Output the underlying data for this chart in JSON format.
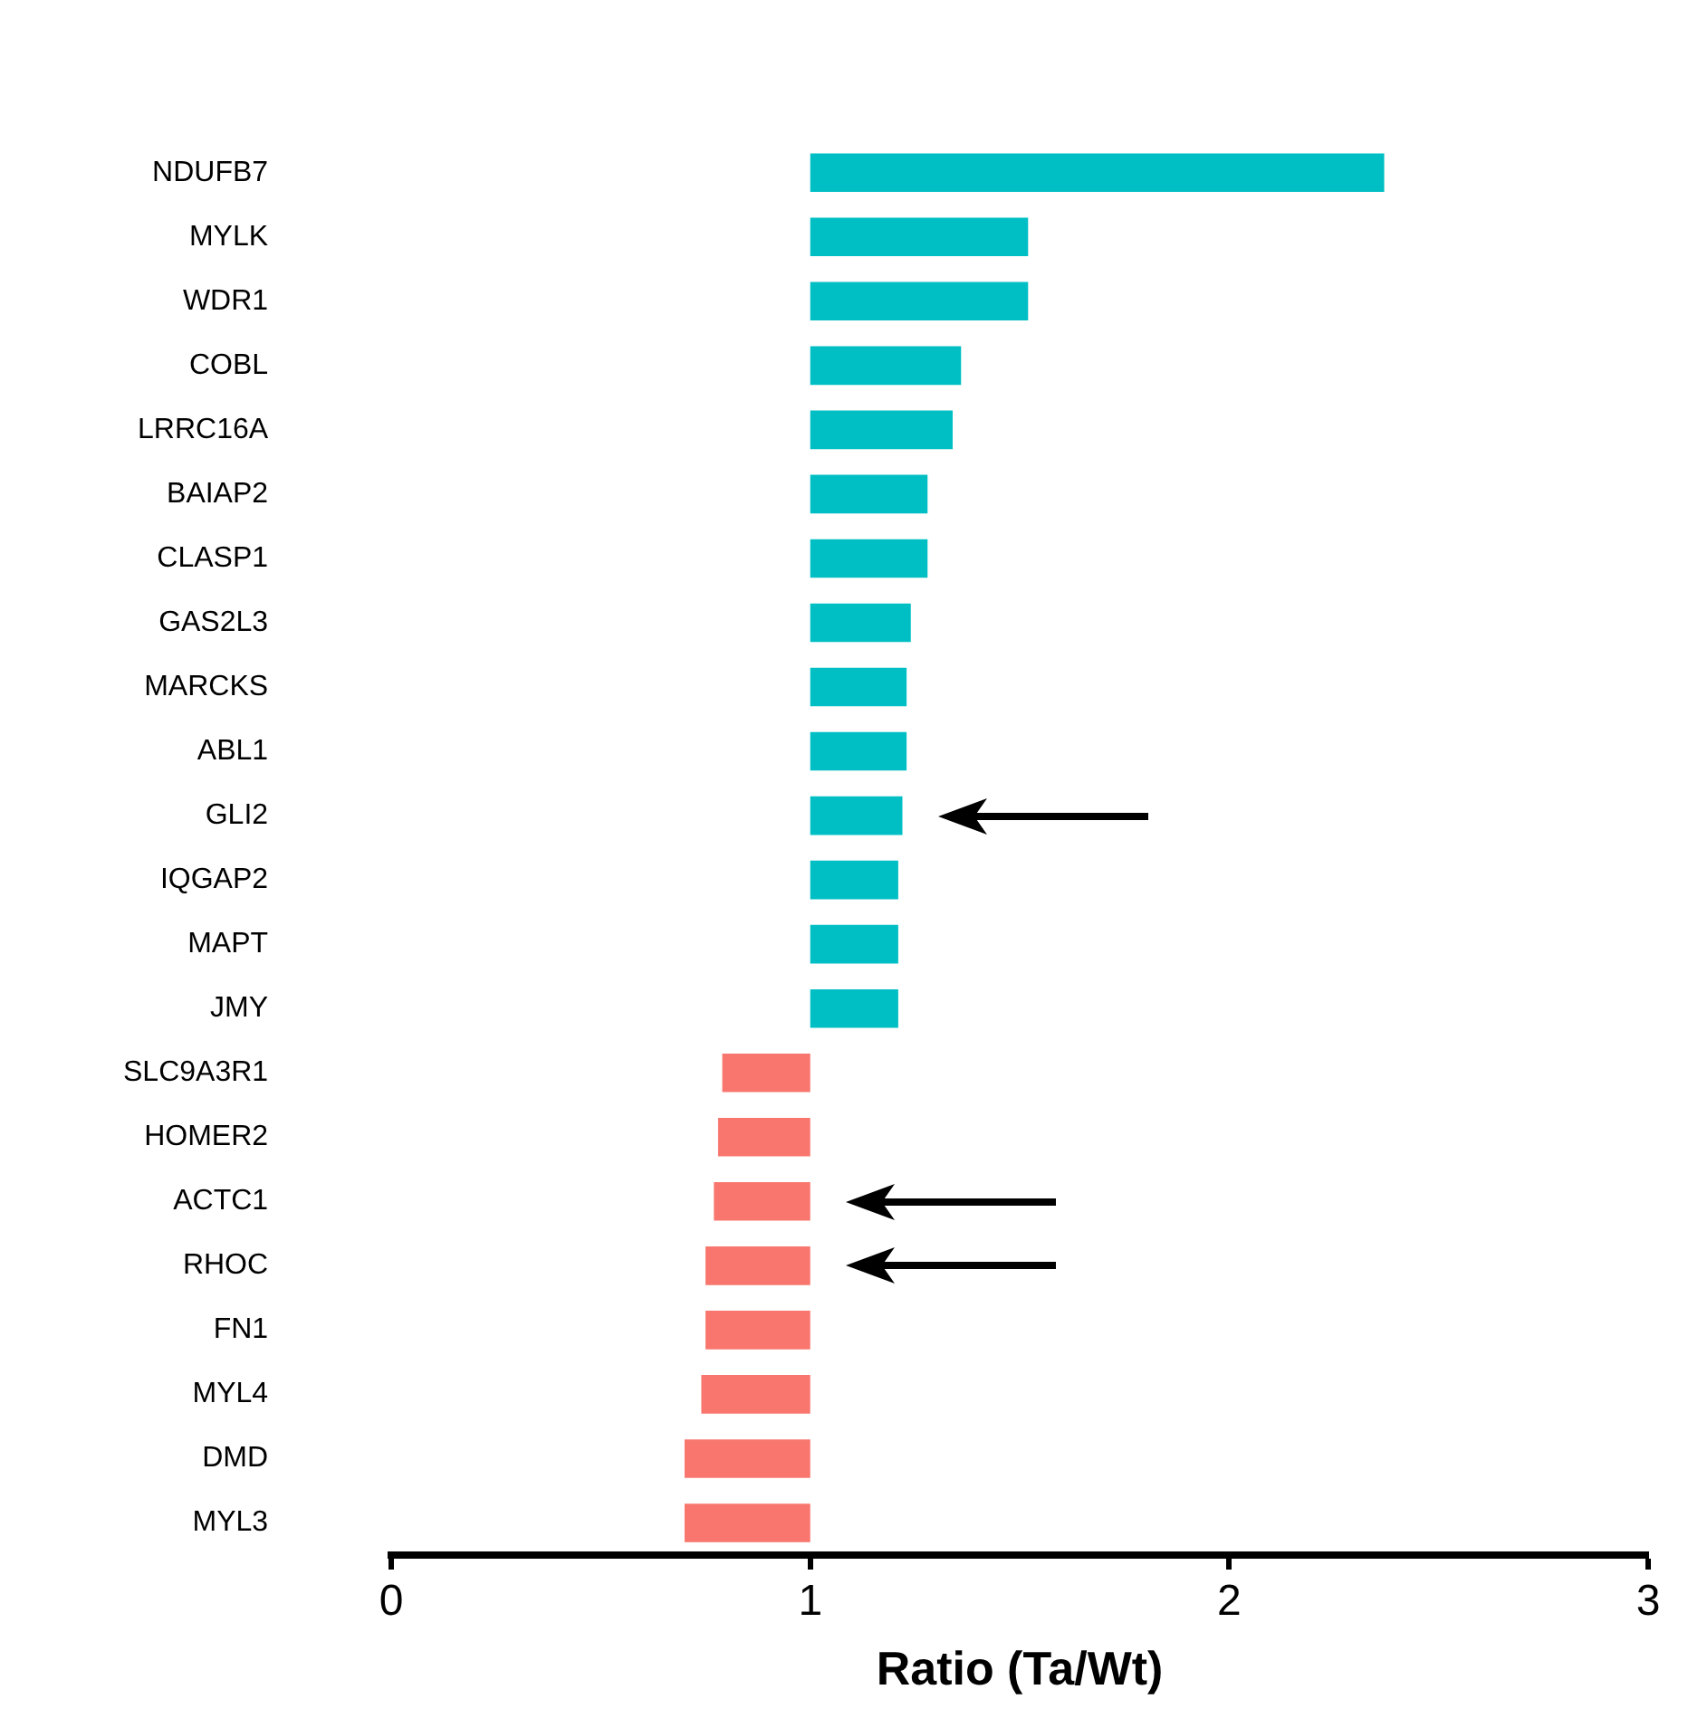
{
  "chart_data": {
    "type": "bar",
    "orientation": "horizontal",
    "xlabel": "Ratio (Ta/Wt)",
    "categories": [
      "NDUFB7",
      "MYLK",
      "WDR1",
      "COBL",
      "LRRC16A",
      "BAIAP2",
      "CLASP1",
      "GAS2L3",
      "MARCKS",
      "ABL1",
      "GLI2",
      "IQGAP2",
      "MAPT",
      "JMY",
      "SLC9A3R1",
      "HOMER2",
      "ACTC1",
      "RHOC",
      "FN1",
      "MYL4",
      "DMD",
      "MYL3"
    ],
    "base": [
      1,
      1,
      1,
      1,
      1,
      1,
      1,
      1,
      1,
      1,
      1,
      1,
      1,
      1,
      1,
      1,
      1,
      1,
      1,
      1,
      1,
      1
    ],
    "values": [
      1.37,
      0.52,
      0.52,
      0.36,
      0.34,
      0.28,
      0.28,
      0.24,
      0.23,
      0.23,
      0.22,
      0.21,
      0.21,
      0.21,
      -0.21,
      -0.22,
      -0.23,
      -0.25,
      -0.25,
      -0.26,
      -0.3,
      -0.3
    ],
    "colors": [
      "#00bfc4",
      "#00bfc4",
      "#00bfc4",
      "#00bfc4",
      "#00bfc4",
      "#00bfc4",
      "#00bfc4",
      "#00bfc4",
      "#00bfc4",
      "#00bfc4",
      "#00bfc4",
      "#00bfc4",
      "#00bfc4",
      "#00bfc4",
      "#f8766d",
      "#f8766d",
      "#f8766d",
      "#f8766d",
      "#f8766d",
      "#f8766d",
      "#f8766d",
      "#f8766d"
    ],
    "xlim": [
      0,
      3
    ],
    "xticks": [
      0,
      1,
      2,
      3
    ],
    "grid": false
  }
}
